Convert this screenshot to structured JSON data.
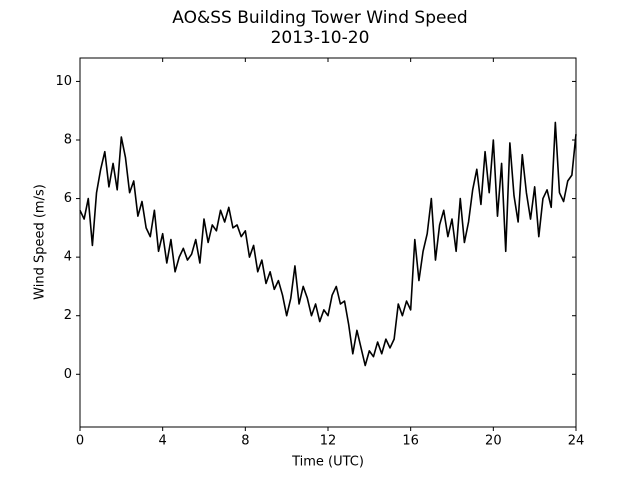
{
  "chart_data": {
    "type": "line",
    "title": "AO&SS Building Tower Wind Speed",
    "subtitle": "2013-10-20",
    "x_label": "Time (UTC)",
    "y_label": "Wind Speed (m/s)",
    "xlim": [
      0,
      24
    ],
    "ylim": [
      -1.8,
      10.8
    ],
    "xticks": [
      0,
      4,
      8,
      12,
      16,
      20,
      24
    ],
    "yticks": [
      0,
      2,
      4,
      6,
      8,
      10
    ],
    "grid": false,
    "series": [
      {
        "color": "#000000",
        "x": [
          0,
          0.2,
          0.4,
          0.6,
          0.8,
          1,
          1.2,
          1.4,
          1.6,
          1.8,
          2,
          2.2,
          2.4,
          2.6,
          2.8,
          3,
          3.2,
          3.4,
          3.6,
          3.8,
          4,
          4.2,
          4.4,
          4.6,
          4.8,
          5,
          5.2,
          5.4,
          5.6,
          5.8,
          6,
          6.2,
          6.4,
          6.6,
          6.8,
          7,
          7.2,
          7.4,
          7.6,
          7.8,
          8,
          8.2,
          8.4,
          8.6,
          8.8,
          9,
          9.2,
          9.4,
          9.6,
          9.8,
          10,
          10.2,
          10.4,
          10.6,
          10.8,
          11,
          11.2,
          11.4,
          11.6,
          11.8,
          12,
          12.2,
          12.4,
          12.6,
          12.8,
          13,
          13.2,
          13.4,
          13.6,
          13.8,
          14,
          14.2,
          14.4,
          14.6,
          14.8,
          15,
          15.2,
          15.4,
          15.6,
          15.8,
          16,
          16.2,
          16.4,
          16.6,
          16.8,
          17,
          17.2,
          17.4,
          17.6,
          17.8,
          18,
          18.2,
          18.4,
          18.6,
          18.8,
          19,
          19.2,
          19.4,
          19.6,
          19.8,
          20,
          20.2,
          20.4,
          20.6,
          20.8,
          21,
          21.2,
          21.4,
          21.6,
          21.8,
          22,
          22.2,
          22.4,
          22.6,
          22.8,
          23,
          23.2,
          23.4,
          23.6,
          23.8,
          24
        ],
        "values": [
          5.6,
          5.3,
          6.0,
          4.4,
          6.2,
          7.0,
          7.6,
          6.4,
          7.2,
          6.3,
          8.1,
          7.4,
          6.2,
          6.6,
          5.4,
          5.9,
          5.0,
          4.7,
          5.6,
          4.2,
          4.8,
          3.8,
          4.6,
          3.5,
          4.0,
          4.3,
          3.9,
          4.1,
          4.6,
          3.8,
          5.3,
          4.5,
          5.1,
          4.9,
          5.6,
          5.2,
          5.7,
          5.0,
          5.1,
          4.7,
          4.9,
          4.0,
          4.4,
          3.5,
          3.9,
          3.1,
          3.5,
          2.9,
          3.2,
          2.7,
          2.0,
          2.6,
          3.7,
          2.4,
          3.0,
          2.6,
          2.0,
          2.4,
          1.8,
          2.2,
          2.0,
          2.7,
          3.0,
          2.4,
          2.5,
          1.7,
          0.7,
          1.5,
          0.9,
          0.3,
          0.8,
          0.6,
          1.1,
          0.7,
          1.2,
          0.9,
          1.2,
          2.4,
          2.0,
          2.5,
          2.2,
          4.6,
          3.2,
          4.2,
          4.8,
          6.0,
          3.9,
          5.1,
          5.6,
          4.7,
          5.3,
          4.2,
          6.0,
          4.5,
          5.2,
          6.3,
          7.0,
          5.8,
          7.6,
          6.2,
          8.0,
          5.4,
          7.2,
          4.2,
          7.9,
          6.1,
          5.2,
          7.5,
          6.2,
          5.3,
          6.4,
          4.7,
          6.0,
          6.3,
          5.7,
          8.6,
          6.2,
          5.9,
          6.6,
          6.8,
          8.2
        ]
      }
    ]
  }
}
